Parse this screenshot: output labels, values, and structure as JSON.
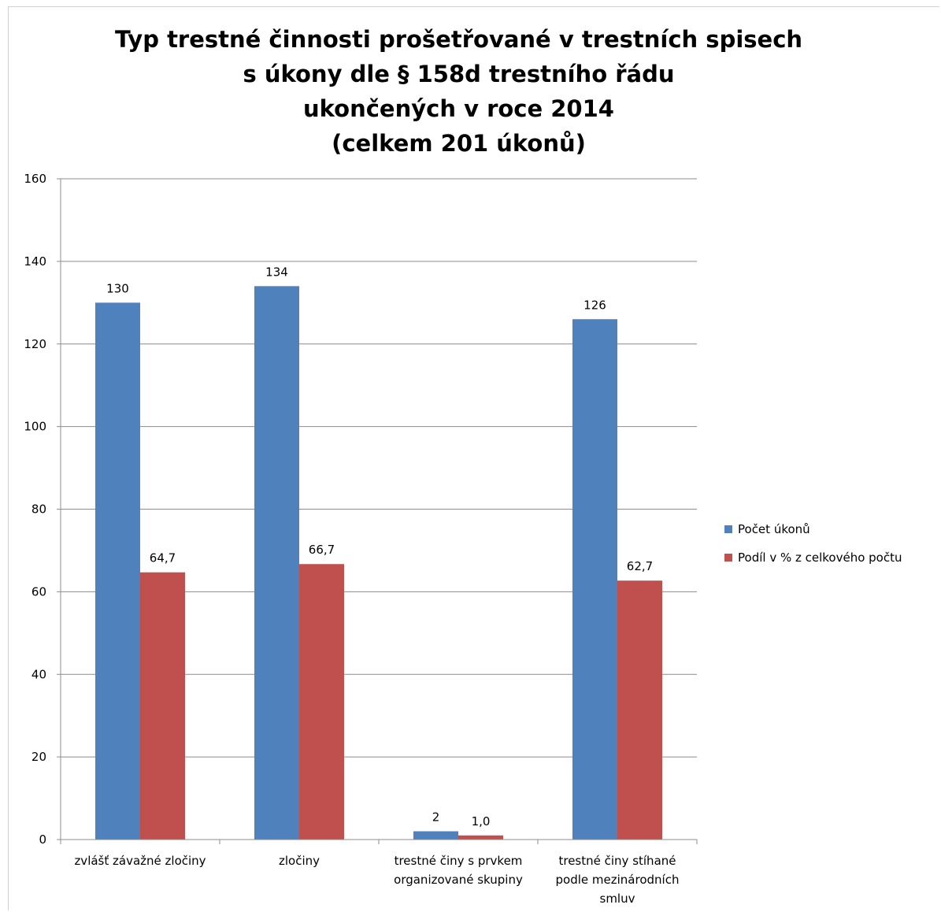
{
  "chart_data": {
    "type": "bar",
    "title_lines": [
      "Typ trestné činnosti prošetřované v trestních spisech",
      "s úkony dle § 158d trestního řádu",
      "ukončených v roce 2014",
      "(celkem 201 úkonů)"
    ],
    "categories": [
      [
        "zvlášť závažné zločiny"
      ],
      [
        "zločiny"
      ],
      [
        "trestné činy s prvkem",
        "organizované skupiny"
      ],
      [
        "trestné činy stíhané",
        "podle mezinárodních",
        "smluv"
      ]
    ],
    "series": [
      {
        "name": "Počet úkonů",
        "color": "#4f81bd",
        "values": [
          130,
          134,
          2,
          126
        ],
        "labels": [
          "130",
          "134",
          "2",
          "126"
        ]
      },
      {
        "name": "Podíl v % z celkového počtu",
        "color": "#c0504d",
        "values": [
          64.7,
          66.7,
          1.0,
          62.7
        ],
        "labels": [
          "64,7",
          "66,7",
          "1,0",
          "62,7"
        ]
      }
    ],
    "ylim": [
      0,
      160
    ],
    "yticks": [
      0,
      20,
      40,
      60,
      80,
      100,
      120,
      140,
      160
    ],
    "grid": true,
    "legend_position": "right"
  }
}
